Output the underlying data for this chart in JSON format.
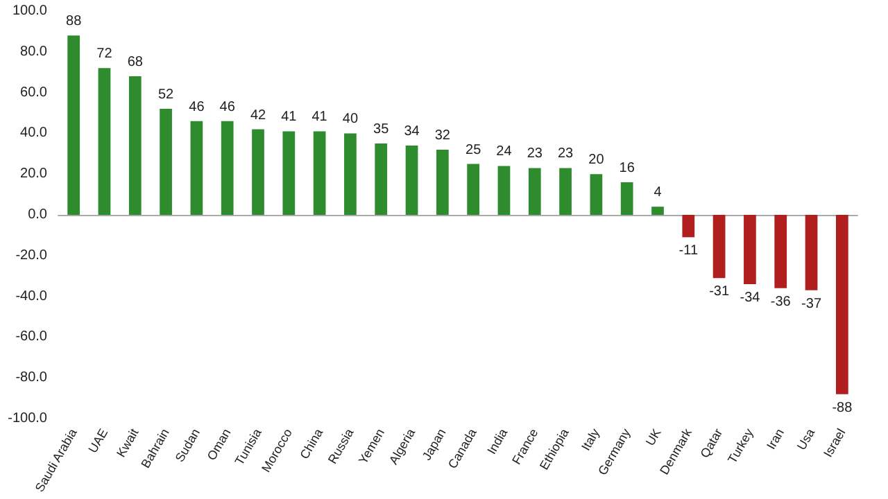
{
  "chart_data": {
    "type": "bar",
    "categories": [
      "Saudi Arabia",
      "UAE",
      "Kwait",
      "Bahrain",
      "Sudan",
      "Oman",
      "Tunisia",
      "Morocco",
      "China",
      "Russia",
      "Yemen",
      "Algeria",
      "Japan",
      "Canada",
      "India",
      "France",
      "Ethiopia",
      "Italy",
      "Germany",
      "UK",
      "Denmark",
      "Qatar",
      "Turkey",
      "Iran",
      "Usa",
      "Israel"
    ],
    "values": [
      88,
      72,
      68,
      52,
      46,
      46,
      42,
      41,
      41,
      40,
      35,
      34,
      32,
      25,
      24,
      23,
      23,
      20,
      16,
      4,
      -11,
      -31,
      -34,
      -36,
      -37,
      -88
    ],
    "colors": [
      "#2e8b2e",
      "#2e8b2e",
      "#2e8b2e",
      "#2e8b2e",
      "#2e8b2e",
      "#2e8b2e",
      "#2e8b2e",
      "#2e8b2e",
      "#2e8b2e",
      "#2e8b2e",
      "#2e8b2e",
      "#2e8b2e",
      "#2e8b2e",
      "#2e8b2e",
      "#2e8b2e",
      "#2e8b2e",
      "#2e8b2e",
      "#2e8b2e",
      "#2e8b2e",
      "#2e8b2e",
      "#b01e1e",
      "#b01e1e",
      "#b01e1e",
      "#b01e1e",
      "#b01e1e",
      "#b01e1e"
    ],
    "ylim": [
      -100,
      100
    ],
    "yticks": [
      {
        "value": -100,
        "label": "-100.0"
      },
      {
        "value": -80,
        "label": "-80.0"
      },
      {
        "value": -60,
        "label": "-60.0"
      },
      {
        "value": -40,
        "label": "-40.0"
      },
      {
        "value": -20,
        "label": "-20.0"
      },
      {
        "value": 0,
        "label": "0.0"
      },
      {
        "value": 20,
        "label": "20.0"
      },
      {
        "value": 40,
        "label": "40.0"
      },
      {
        "value": 60,
        "label": "60.0"
      },
      {
        "value": 80,
        "label": "80.0"
      },
      {
        "value": 100,
        "label": "100.0"
      }
    ],
    "data_labels": true
  }
}
